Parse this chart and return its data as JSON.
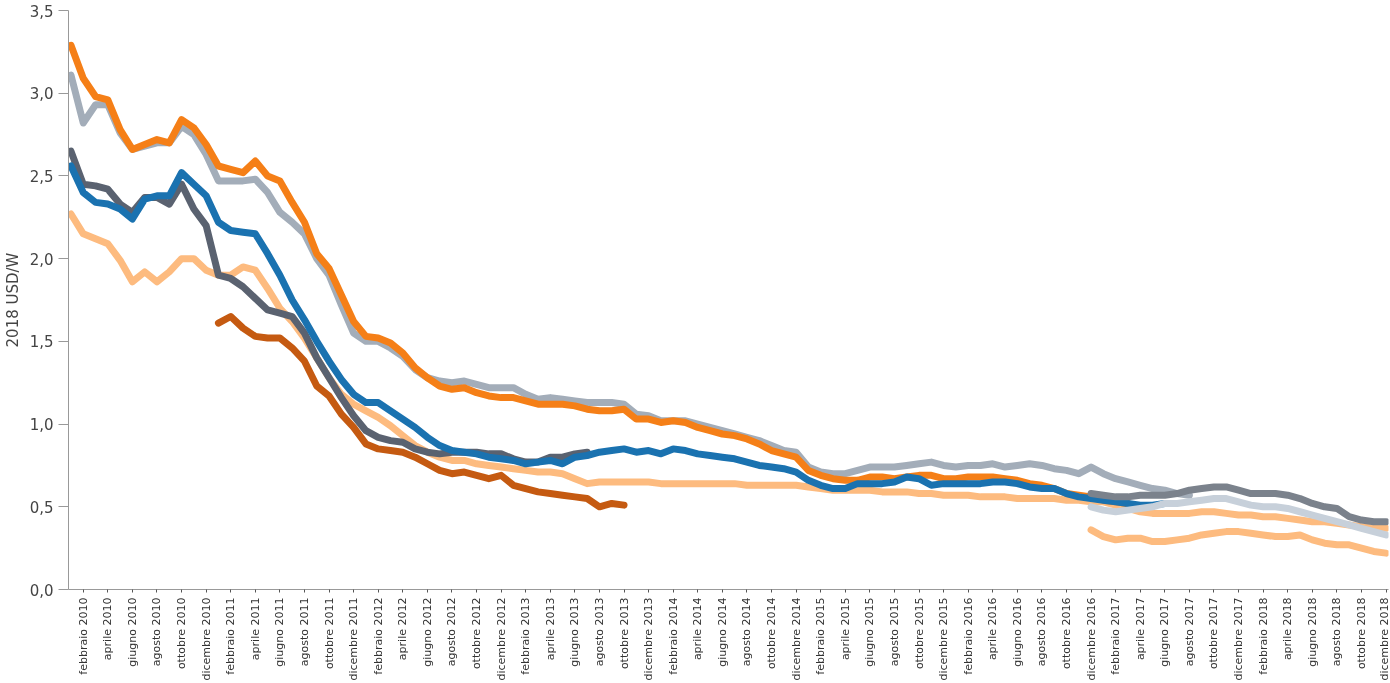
{
  "chart_data": {
    "type": "line",
    "ylabel": "2018 USD/W",
    "categories": [
      null,
      "febbraio 2010",
      null,
      "aprile 2010",
      null,
      "giugno 2010",
      null,
      "agosto 2010",
      null,
      "ottobre 2010",
      null,
      "dicembre 2010",
      null,
      "febbraio 2011",
      null,
      "aprile 2011",
      null,
      "giugno 2011",
      null,
      "agosto 2011",
      null,
      "ottobre 2011",
      null,
      "dicembre 2011",
      null,
      "febbraio 2012",
      null,
      "aprile 2012",
      null,
      "giugno 2012",
      null,
      "agosto 2012",
      null,
      "ottobre 2012",
      null,
      "dicembre 2012",
      null,
      "febbraio 2013",
      null,
      "aprile 2013",
      null,
      "giugno 2013",
      null,
      "agosto 2013",
      null,
      "ottobre 2013",
      null,
      "dicembre 2013",
      null,
      "febbraio 2014",
      null,
      "aprile 2014",
      null,
      "giugno 2014",
      null,
      "agosto 2014",
      null,
      "ottobre 2014",
      null,
      "dicembre 2014",
      null,
      "febbraio 2015",
      null,
      "aprile 2015",
      null,
      "giugno 2015",
      null,
      "agosto 2015",
      null,
      "ottobre 2015",
      null,
      "dicembre 2015",
      null,
      "febbraio 2016",
      null,
      "aprile 2016",
      null,
      "giugno 2016",
      null,
      "agosto 2016",
      null,
      "ottobre 2016",
      null,
      "dicembre 2016",
      null,
      "febbraio 2017",
      null,
      "aprile 2017",
      null,
      "giugno 2017",
      null,
      "agosto 2017",
      null,
      "ottobre 2017",
      null,
      "dicembre 2017",
      null,
      "febbraio 2018",
      null,
      "aprile 2018",
      null,
      "giugno 2018",
      null,
      "agosto 2018",
      null,
      "ottobre 2018",
      null,
      "dicembre 2018"
    ],
    "ylim": [
      0,
      3.5
    ],
    "yticks": [
      {
        "value": 0,
        "label": "0,0"
      },
      {
        "value": 0.5,
        "label": "0,5"
      },
      {
        "value": 1,
        "label": "1,0"
      },
      {
        "value": 1.5,
        "label": "1,5"
      },
      {
        "value": 2,
        "label": "2,0"
      },
      {
        "value": 2.5,
        "label": "2,5"
      },
      {
        "value": 3,
        "label": "3,0"
      },
      {
        "value": 3.5,
        "label": "3,5"
      }
    ],
    "series": [
      {
        "color": "#fdbb7f",
        "values": [
          2.27,
          2.15,
          2.12,
          2.09,
          1.99,
          1.86,
          1.92,
          1.86,
          1.92,
          2.0,
          2.0,
          1.93,
          1.9,
          1.9,
          1.95,
          1.93,
          1.82,
          1.7,
          1.62,
          1.52,
          1.4,
          1.28,
          1.18,
          1.12,
          1.08,
          1.04,
          0.99,
          0.93,
          0.87,
          0.83,
          0.8,
          0.78,
          0.78,
          0.76,
          0.75,
          0.74,
          0.73,
          0.72,
          0.71,
          0.71,
          0.7,
          0.67,
          0.64,
          0.65,
          0.65,
          0.65,
          0.65,
          0.65,
          0.64,
          0.64,
          0.64,
          0.64,
          0.64,
          0.64,
          0.64,
          0.63,
          0.63,
          0.63,
          0.63,
          0.63,
          0.62,
          0.61,
          0.6,
          0.6,
          0.6,
          0.6,
          0.59,
          0.59,
          0.59,
          0.58,
          0.58,
          0.57,
          0.57,
          0.57,
          0.56,
          0.56,
          0.56,
          0.55,
          0.55,
          0.55,
          0.55,
          0.54,
          0.54,
          0.53,
          0.53,
          0.51,
          0.49,
          0.47,
          0.46,
          0.46,
          0.46,
          0.46,
          0.47,
          0.47,
          0.46,
          0.45,
          0.45,
          0.44,
          0.44,
          0.43,
          0.42,
          0.41,
          0.41,
          0.4,
          0.39,
          0.38,
          0.37,
          0.37
        ]
      },
      {
        "color": "#a3adb9",
        "values": [
          3.11,
          2.82,
          2.93,
          2.93,
          2.76,
          2.66,
          2.68,
          2.7,
          2.7,
          2.8,
          2.75,
          2.63,
          2.47,
          2.47,
          2.47,
          2.48,
          2.4,
          2.28,
          2.22,
          2.15,
          2.0,
          1.9,
          1.72,
          1.55,
          1.5,
          1.5,
          1.46,
          1.41,
          1.33,
          1.28,
          1.26,
          1.25,
          1.26,
          1.24,
          1.22,
          1.22,
          1.22,
          1.18,
          1.15,
          1.16,
          1.15,
          1.14,
          1.13,
          1.13,
          1.13,
          1.12,
          1.06,
          1.05,
          1.02,
          1.02,
          1.02,
          1.0,
          0.98,
          0.96,
          0.94,
          0.92,
          0.9,
          0.87,
          0.84,
          0.83,
          0.74,
          0.71,
          0.7,
          0.7,
          0.72,
          0.74,
          0.74,
          0.74,
          0.75,
          0.76,
          0.77,
          0.75,
          0.74,
          0.75,
          0.75,
          0.76,
          0.74,
          0.75,
          0.76,
          0.75,
          0.73,
          0.72,
          0.7,
          0.74,
          0.7,
          0.67,
          0.65,
          0.63,
          0.61,
          0.6,
          0.58,
          0.57,
          null,
          null,
          null,
          null,
          null,
          null,
          null,
          null,
          null,
          null,
          null,
          null,
          null,
          null,
          null,
          null
        ]
      },
      {
        "color": "#f57f17",
        "values": [
          3.29,
          3.09,
          2.98,
          2.96,
          2.78,
          2.66,
          2.69,
          2.72,
          2.7,
          2.84,
          2.79,
          2.69,
          2.56,
          2.54,
          2.52,
          2.59,
          2.5,
          2.47,
          2.34,
          2.22,
          2.03,
          1.94,
          1.78,
          1.62,
          1.53,
          1.52,
          1.49,
          1.43,
          1.34,
          1.28,
          1.23,
          1.21,
          1.22,
          1.19,
          1.17,
          1.16,
          1.16,
          1.14,
          1.12,
          1.12,
          1.12,
          1.11,
          1.09,
          1.08,
          1.08,
          1.09,
          1.03,
          1.03,
          1.01,
          1.02,
          1.01,
          0.98,
          0.96,
          0.94,
          0.93,
          0.91,
          0.88,
          0.84,
          0.82,
          0.8,
          0.72,
          0.69,
          0.67,
          0.66,
          0.66,
          0.68,
          0.68,
          0.67,
          0.68,
          0.69,
          0.69,
          0.67,
          0.67,
          0.68,
          0.68,
          0.68,
          0.67,
          0.66,
          0.64,
          0.63,
          0.61,
          0.58,
          0.57,
          0.56,
          0.54,
          0.53,
          0.52,
          null,
          null,
          null,
          null,
          null,
          null,
          null,
          null,
          null,
          null,
          null,
          null,
          null,
          null,
          null,
          null,
          null,
          null,
          null,
          null,
          null
        ]
      },
      {
        "color": "#5a6270",
        "values": [
          2.65,
          2.45,
          2.44,
          2.42,
          2.33,
          2.28,
          2.37,
          2.37,
          2.33,
          2.45,
          2.3,
          2.2,
          1.9,
          1.88,
          1.83,
          1.76,
          1.69,
          1.67,
          1.65,
          1.55,
          1.4,
          1.28,
          1.16,
          1.05,
          0.96,
          0.92,
          0.9,
          0.89,
          0.85,
          0.83,
          0.82,
          0.83,
          0.83,
          0.83,
          0.82,
          0.82,
          0.79,
          0.77,
          0.77,
          0.8,
          0.8,
          0.82,
          0.83,
          null,
          null,
          null,
          null,
          null,
          null,
          null,
          null,
          null,
          null,
          null,
          null,
          null,
          null,
          null,
          null,
          null,
          null,
          null,
          null,
          null,
          null,
          null,
          null,
          null,
          null,
          null,
          null,
          null,
          null,
          null,
          null,
          null,
          null,
          null,
          null,
          null,
          null,
          null,
          null,
          null,
          null,
          null,
          null,
          null,
          null,
          null,
          null,
          null,
          null,
          null,
          null,
          null,
          null,
          null,
          null,
          null,
          null,
          null,
          null,
          null,
          null,
          null,
          null,
          null
        ]
      },
      {
        "color": "#c55a11",
        "values": [
          null,
          null,
          null,
          null,
          null,
          null,
          null,
          null,
          null,
          null,
          null,
          null,
          1.61,
          1.65,
          1.58,
          1.53,
          1.52,
          1.52,
          1.46,
          1.38,
          1.23,
          1.17,
          1.06,
          0.98,
          0.88,
          0.85,
          0.84,
          0.83,
          0.8,
          0.76,
          0.72,
          0.7,
          0.71,
          0.69,
          0.67,
          0.69,
          0.63,
          0.61,
          0.59,
          0.58,
          0.57,
          0.56,
          0.55,
          0.5,
          0.52,
          0.51,
          null,
          null,
          null,
          null,
          null,
          null,
          null,
          null,
          null,
          null,
          null,
          null,
          null,
          null,
          null,
          null,
          null,
          null,
          null,
          null,
          null,
          null,
          null,
          null,
          null,
          null,
          null,
          null,
          null,
          null,
          null,
          null,
          null,
          null,
          null,
          null,
          null,
          null,
          null,
          null,
          null,
          null,
          null,
          null,
          null,
          null,
          null,
          null,
          null,
          null,
          null,
          null,
          null,
          null,
          null,
          null,
          null,
          null,
          null,
          null,
          null,
          null
        ]
      },
      {
        "color": "#1a72b0",
        "values": [
          2.56,
          2.4,
          2.34,
          2.33,
          2.3,
          2.24,
          2.36,
          2.38,
          2.38,
          2.52,
          2.45,
          2.38,
          2.22,
          2.17,
          2.16,
          2.15,
          2.03,
          1.9,
          1.75,
          1.63,
          1.5,
          1.38,
          1.27,
          1.18,
          1.13,
          1.13,
          1.08,
          1.03,
          0.98,
          0.92,
          0.87,
          0.84,
          0.83,
          0.82,
          0.8,
          0.79,
          0.78,
          0.76,
          0.77,
          0.78,
          0.76,
          0.8,
          0.81,
          0.83,
          0.84,
          0.85,
          0.83,
          0.84,
          0.82,
          0.85,
          0.84,
          0.82,
          0.81,
          0.8,
          0.79,
          0.77,
          0.75,
          0.74,
          0.73,
          0.71,
          0.66,
          0.63,
          0.61,
          0.61,
          0.64,
          0.64,
          0.64,
          0.65,
          0.68,
          0.67,
          0.63,
          0.64,
          0.64,
          0.64,
          0.64,
          0.65,
          0.65,
          0.64,
          0.62,
          0.61,
          0.61,
          0.58,
          0.56,
          0.55,
          0.54,
          0.53,
          0.52,
          0.51,
          0.51,
          0.52,
          null,
          null,
          null,
          null,
          null,
          null,
          null,
          null,
          null,
          null,
          null,
          null,
          null,
          null,
          null,
          null,
          null,
          null
        ]
      },
      {
        "color": "#c7d0da",
        "values": [
          null,
          null,
          null,
          null,
          null,
          null,
          null,
          null,
          null,
          null,
          null,
          null,
          null,
          null,
          null,
          null,
          null,
          null,
          null,
          null,
          null,
          null,
          null,
          null,
          null,
          null,
          null,
          null,
          null,
          null,
          null,
          null,
          null,
          null,
          null,
          null,
          null,
          null,
          null,
          null,
          null,
          null,
          null,
          null,
          null,
          null,
          null,
          null,
          null,
          null,
          null,
          null,
          null,
          null,
          null,
          null,
          null,
          null,
          null,
          null,
          null,
          null,
          null,
          null,
          null,
          null,
          null,
          null,
          null,
          null,
          null,
          null,
          null,
          null,
          null,
          null,
          null,
          null,
          null,
          null,
          null,
          null,
          null,
          0.5,
          0.48,
          0.47,
          0.48,
          0.49,
          0.5,
          0.52,
          0.52,
          0.53,
          0.54,
          0.55,
          0.55,
          0.53,
          0.51,
          0.5,
          0.5,
          0.49,
          0.47,
          0.45,
          0.43,
          0.41,
          0.39,
          0.37,
          0.35,
          0.33
        ]
      },
      {
        "color": "#7b828c",
        "values": [
          null,
          null,
          null,
          null,
          null,
          null,
          null,
          null,
          null,
          null,
          null,
          null,
          null,
          null,
          null,
          null,
          null,
          null,
          null,
          null,
          null,
          null,
          null,
          null,
          null,
          null,
          null,
          null,
          null,
          null,
          null,
          null,
          null,
          null,
          null,
          null,
          null,
          null,
          null,
          null,
          null,
          null,
          null,
          null,
          null,
          null,
          null,
          null,
          null,
          null,
          null,
          null,
          null,
          null,
          null,
          null,
          null,
          null,
          null,
          null,
          null,
          null,
          null,
          null,
          null,
          null,
          null,
          null,
          null,
          null,
          null,
          null,
          null,
          null,
          null,
          null,
          null,
          null,
          null,
          null,
          null,
          null,
          null,
          0.58,
          0.57,
          0.56,
          0.56,
          0.57,
          0.57,
          0.57,
          0.58,
          0.6,
          0.61,
          0.62,
          0.62,
          0.6,
          0.58,
          0.58,
          0.58,
          0.57,
          0.55,
          0.52,
          0.5,
          0.49,
          0.44,
          0.42,
          0.41,
          0.41
        ]
      },
      {
        "color": "#fdbb7f",
        "values": [
          null,
          null,
          null,
          null,
          null,
          null,
          null,
          null,
          null,
          null,
          null,
          null,
          null,
          null,
          null,
          null,
          null,
          null,
          null,
          null,
          null,
          null,
          null,
          null,
          null,
          null,
          null,
          null,
          null,
          null,
          null,
          null,
          null,
          null,
          null,
          null,
          null,
          null,
          null,
          null,
          null,
          null,
          null,
          null,
          null,
          null,
          null,
          null,
          null,
          null,
          null,
          null,
          null,
          null,
          null,
          null,
          null,
          null,
          null,
          null,
          null,
          null,
          null,
          null,
          null,
          null,
          null,
          null,
          null,
          null,
          null,
          null,
          null,
          null,
          null,
          null,
          null,
          null,
          null,
          null,
          null,
          null,
          null,
          0.36,
          0.32,
          0.3,
          0.31,
          0.31,
          0.29,
          0.29,
          0.3,
          0.31,
          0.33,
          0.34,
          0.35,
          0.35,
          0.34,
          0.33,
          0.32,
          0.32,
          0.33,
          0.3,
          0.28,
          0.27,
          0.27,
          0.25,
          0.23,
          0.22
        ]
      }
    ]
  }
}
